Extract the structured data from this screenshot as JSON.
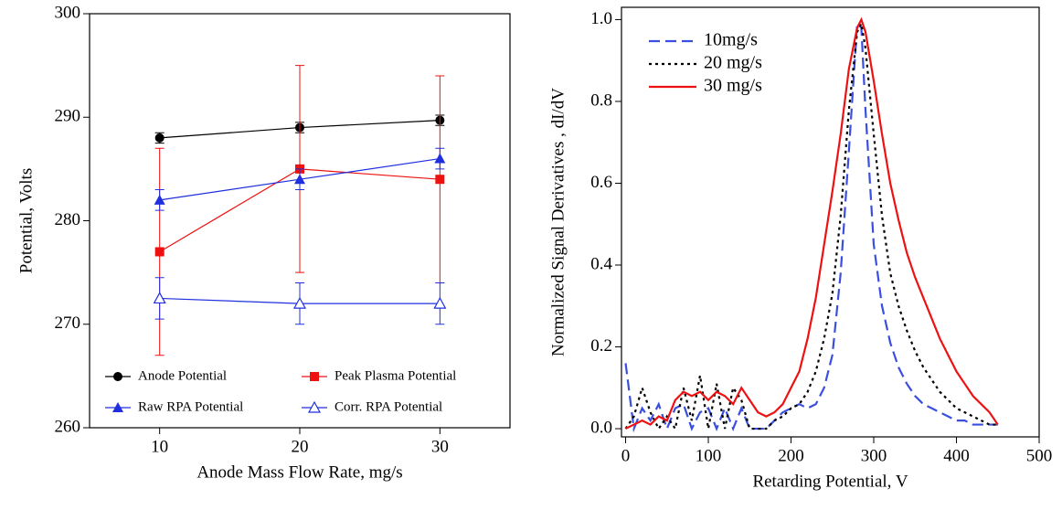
{
  "chart_data": [
    {
      "type": "line",
      "xlabel": "Anode Mass Flow Rate, mg/s",
      "ylabel": "Potential, Volts",
      "x": [
        10,
        20,
        30
      ],
      "xlim": [
        5,
        35
      ],
      "xticks": [
        10,
        20,
        30
      ],
      "ylim": [
        260,
        300
      ],
      "yticks": [
        260,
        270,
        280,
        290,
        300
      ],
      "legend": "lower",
      "series": [
        {
          "name": "Anode Potential",
          "color": "#000000",
          "marker": "circle",
          "dash": "solid",
          "values": [
            288,
            289,
            289.7
          ],
          "errors": [
            0.5,
            0.5,
            0.5
          ]
        },
        {
          "name": "Peak Plasma Potential",
          "color": "#ee1111",
          "marker": "square",
          "dash": "solid",
          "values": [
            277,
            285,
            284
          ],
          "errors": [
            10,
            10,
            10
          ]
        },
        {
          "name": "Raw RPA Potential",
          "color": "#1f2fe0",
          "marker": "triangle",
          "dash": "solid",
          "values": [
            282,
            284,
            286
          ],
          "errors": [
            1,
            1,
            1
          ]
        },
        {
          "name": "Corr. RPA Potential",
          "color": "#1f2fe0",
          "marker": "triangle-open",
          "dash": "solid",
          "values": [
            272.5,
            272,
            272
          ],
          "errors": [
            2,
            2,
            2
          ]
        }
      ]
    },
    {
      "type": "line",
      "xlabel": "Retarding Potential, V",
      "ylabel": "Normalized Signal Derivatives , dI/dV",
      "x": [
        0,
        10,
        20,
        30,
        40,
        50,
        60,
        70,
        80,
        90,
        100,
        110,
        120,
        130,
        140,
        150,
        160,
        170,
        180,
        190,
        200,
        210,
        220,
        230,
        240,
        250,
        260,
        270,
        280,
        285,
        290,
        300,
        310,
        320,
        330,
        340,
        350,
        360,
        370,
        380,
        390,
        400,
        410,
        420,
        430,
        440,
        450
      ],
      "xlim": [
        -5,
        500
      ],
      "xticks": [
        0,
        100,
        200,
        300,
        400,
        500
      ],
      "ylim": [
        -0.02,
        1.03
      ],
      "yticks": [
        {
          "value": 0,
          "label": "0.0"
        },
        0.2,
        0.4,
        0.6,
        0.8,
        {
          "value": 1,
          "label": "1.0"
        }
      ],
      "legend": "upper left",
      "series": [
        {
          "name": "10mg/s",
          "color": "#3a4fe0",
          "dash": "dashed",
          "values": [
            0.16,
            0,
            0.05,
            0.02,
            0.06,
            0,
            0.05,
            0.06,
            0,
            0.04,
            0.05,
            0,
            0.05,
            0,
            0.05,
            0,
            0,
            0,
            0.02,
            0.04,
            0.05,
            0.06,
            0.05,
            0.06,
            0.1,
            0.18,
            0.38,
            0.68,
            0.99,
            0.98,
            0.78,
            0.45,
            0.3,
            0.21,
            0.15,
            0.11,
            0.08,
            0.06,
            0.05,
            0.04,
            0.03,
            0.02,
            0.02,
            0.01,
            0.01,
            0.01,
            0.01
          ]
        },
        {
          "name": "20 mg/s",
          "color": "#000000",
          "dash": "dotted",
          "values": [
            0,
            0.03,
            0.1,
            0.04,
            0,
            0.03,
            0,
            0.1,
            0.02,
            0.13,
            0,
            0.11,
            0,
            0.1,
            0.07,
            0,
            0,
            0,
            0.02,
            0.03,
            0.05,
            0.06,
            0.09,
            0.14,
            0.22,
            0.33,
            0.52,
            0.78,
            0.97,
            0.99,
            0.93,
            0.72,
            0.52,
            0.38,
            0.3,
            0.24,
            0.19,
            0.15,
            0.12,
            0.09,
            0.07,
            0.05,
            0.04,
            0.03,
            0.02,
            0.01,
            0.01
          ]
        },
        {
          "name": "30 mg/s",
          "color": "#ee1111",
          "dash": "solid",
          "values": [
            0,
            0.01,
            0.02,
            0.01,
            0.03,
            0.02,
            0.07,
            0.09,
            0.08,
            0.09,
            0.07,
            0.09,
            0.08,
            0.06,
            0.1,
            0.07,
            0.04,
            0.03,
            0.04,
            0.06,
            0.1,
            0.14,
            0.22,
            0.32,
            0.45,
            0.58,
            0.72,
            0.88,
            0.98,
            1,
            0.97,
            0.85,
            0.72,
            0.6,
            0.51,
            0.43,
            0.37,
            0.32,
            0.27,
            0.22,
            0.18,
            0.14,
            0.11,
            0.08,
            0.06,
            0.04,
            0.01
          ]
        }
      ]
    }
  ]
}
